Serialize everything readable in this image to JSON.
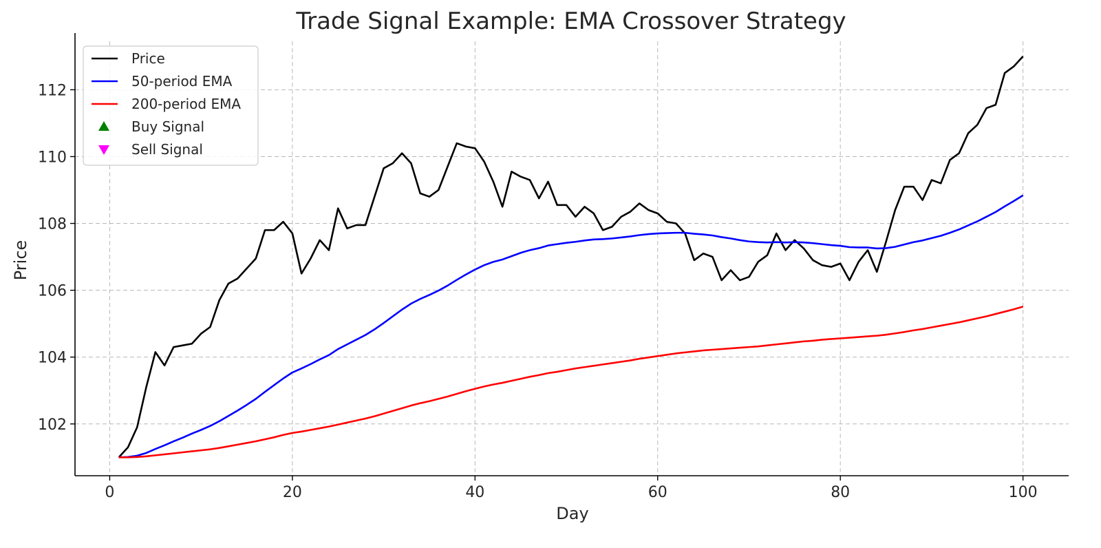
{
  "chart_data": {
    "type": "line",
    "title": "Trade Signal Example: EMA Crossover Strategy",
    "xlabel": "Day",
    "ylabel": "Price",
    "xlim": [
      -3.8,
      105
    ],
    "ylim": [
      100.45,
      113.45
    ],
    "xticks": [
      0,
      20,
      40,
      60,
      80,
      100
    ],
    "yticks": [
      102,
      104,
      106,
      108,
      110,
      112
    ],
    "grid": true,
    "legend_position": "top-left",
    "series": [
      {
        "name": "Price",
        "color": "#000000",
        "x": [
          1,
          2,
          3,
          4,
          5,
          6,
          7,
          8,
          9,
          10,
          11,
          12,
          13,
          14,
          15,
          16,
          17,
          18,
          19,
          20,
          21,
          22,
          23,
          24,
          25,
          26,
          27,
          28,
          29,
          30,
          31,
          32,
          33,
          34,
          35,
          36,
          37,
          38,
          39,
          40,
          41,
          42,
          43,
          44,
          45,
          46,
          47,
          48,
          49,
          50,
          51,
          52,
          53,
          54,
          55,
          56,
          57,
          58,
          59,
          60,
          61,
          62,
          63,
          64,
          65,
          66,
          67,
          68,
          69,
          70,
          71,
          72,
          73,
          74,
          75,
          76,
          77,
          78,
          79,
          80,
          81,
          82,
          83,
          84,
          85,
          86,
          87,
          88,
          89,
          90,
          91,
          92,
          93,
          94,
          95,
          96,
          97,
          98,
          99,
          100
        ],
        "y": [
          101.0,
          101.3,
          101.9,
          103.1,
          104.15,
          103.75,
          104.3,
          104.35,
          104.4,
          104.7,
          104.9,
          105.7,
          106.2,
          106.35,
          106.65,
          106.95,
          107.8,
          107.8,
          108.05,
          107.7,
          106.5,
          106.95,
          107.5,
          107.2,
          108.45,
          107.85,
          107.95,
          107.95,
          108.8,
          109.65,
          109.8,
          110.1,
          109.8,
          108.9,
          108.8,
          109.0,
          109.7,
          110.4,
          110.3,
          110.25,
          109.85,
          109.25,
          108.5,
          109.55,
          109.4,
          109.3,
          108.75,
          109.25,
          108.55,
          108.55,
          108.2,
          108.5,
          108.3,
          107.8,
          107.9,
          108.2,
          108.35,
          108.6,
          108.4,
          108.3,
          108.05,
          108.0,
          107.7,
          106.9,
          107.1,
          107.0,
          106.3,
          106.6,
          106.3,
          106.4,
          106.85,
          107.05,
          107.7,
          107.2,
          107.5,
          107.25,
          106.9,
          106.75,
          106.7,
          106.8,
          106.3,
          106.85,
          107.2,
          106.55,
          107.45,
          108.4,
          109.1,
          109.1,
          108.7,
          109.3,
          109.2,
          109.9,
          110.1,
          110.7,
          110.95,
          111.45,
          111.55,
          112.5,
          112.7,
          113.0
        ]
      },
      {
        "name": "50-period EMA",
        "color": "#0000ff",
        "x": [
          1,
          2,
          3,
          4,
          5,
          6,
          7,
          8,
          9,
          10,
          11,
          12,
          13,
          14,
          15,
          16,
          17,
          18,
          19,
          20,
          21,
          22,
          23,
          24,
          25,
          26,
          27,
          28,
          29,
          30,
          31,
          32,
          33,
          34,
          35,
          36,
          37,
          38,
          39,
          40,
          41,
          42,
          43,
          44,
          45,
          46,
          47,
          48,
          49,
          50,
          51,
          52,
          53,
          54,
          55,
          56,
          57,
          58,
          59,
          60,
          61,
          62,
          63,
          64,
          65,
          66,
          67,
          68,
          69,
          70,
          71,
          72,
          73,
          74,
          75,
          76,
          77,
          78,
          79,
          80,
          81,
          82,
          83,
          84,
          85,
          86,
          87,
          88,
          89,
          90,
          91,
          92,
          93,
          94,
          95,
          96,
          97,
          98,
          99,
          100
        ],
        "y": [
          101.0,
          101.01,
          101.05,
          101.13,
          101.25,
          101.36,
          101.48,
          101.59,
          101.71,
          101.82,
          101.94,
          102.08,
          102.24,
          102.4,
          102.57,
          102.75,
          102.96,
          103.16,
          103.36,
          103.54,
          103.66,
          103.79,
          103.93,
          104.06,
          104.24,
          104.38,
          104.52,
          104.66,
          104.83,
          105.02,
          105.22,
          105.42,
          105.6,
          105.74,
          105.86,
          105.99,
          106.14,
          106.31,
          106.47,
          106.62,
          106.75,
          106.85,
          106.92,
          107.02,
          107.12,
          107.2,
          107.26,
          107.34,
          107.38,
          107.42,
          107.45,
          107.49,
          107.52,
          107.53,
          107.55,
          107.58,
          107.61,
          107.65,
          107.68,
          107.7,
          107.71,
          107.72,
          107.72,
          107.69,
          107.67,
          107.64,
          107.59,
          107.55,
          107.5,
          107.46,
          107.44,
          107.43,
          107.44,
          107.43,
          107.44,
          107.43,
          107.41,
          107.38,
          107.35,
          107.33,
          107.29,
          107.28,
          107.28,
          107.25,
          107.26,
          107.3,
          107.37,
          107.44,
          107.49,
          107.56,
          107.63,
          107.72,
          107.82,
          107.94,
          108.06,
          108.2,
          108.34,
          108.51,
          108.67,
          108.84
        ]
      },
      {
        "name": "200-period EMA",
        "color": "#ff0000",
        "x": [
          1,
          2,
          3,
          4,
          5,
          6,
          7,
          8,
          9,
          10,
          11,
          12,
          13,
          14,
          15,
          16,
          17,
          18,
          19,
          20,
          21,
          22,
          23,
          24,
          25,
          26,
          27,
          28,
          29,
          30,
          31,
          32,
          33,
          34,
          35,
          36,
          37,
          38,
          39,
          40,
          41,
          42,
          43,
          44,
          45,
          46,
          47,
          48,
          49,
          50,
          51,
          52,
          53,
          54,
          55,
          56,
          57,
          58,
          59,
          60,
          61,
          62,
          63,
          64,
          65,
          66,
          67,
          68,
          69,
          70,
          71,
          72,
          73,
          74,
          75,
          76,
          77,
          78,
          79,
          80,
          81,
          82,
          83,
          84,
          85,
          86,
          87,
          88,
          89,
          90,
          91,
          92,
          93,
          94,
          95,
          96,
          97,
          98,
          99,
          100
        ],
        "y": [
          101.0,
          101.0,
          101.01,
          101.03,
          101.06,
          101.09,
          101.12,
          101.15,
          101.18,
          101.21,
          101.24,
          101.28,
          101.33,
          101.38,
          101.43,
          101.48,
          101.54,
          101.6,
          101.67,
          101.73,
          101.77,
          101.82,
          101.87,
          101.92,
          101.98,
          102.04,
          102.1,
          102.16,
          102.23,
          102.31,
          102.39,
          102.47,
          102.55,
          102.62,
          102.68,
          102.75,
          102.82,
          102.9,
          102.98,
          103.05,
          103.12,
          103.18,
          103.23,
          103.29,
          103.35,
          103.41,
          103.46,
          103.52,
          103.56,
          103.61,
          103.66,
          103.7,
          103.74,
          103.78,
          103.82,
          103.86,
          103.9,
          103.95,
          103.99,
          104.03,
          104.07,
          104.11,
          104.14,
          104.17,
          104.2,
          104.22,
          104.24,
          104.26,
          104.28,
          104.3,
          104.32,
          104.35,
          104.38,
          104.41,
          104.44,
          104.47,
          104.49,
          104.52,
          104.54,
          104.56,
          104.58,
          104.6,
          104.62,
          104.64,
          104.67,
          104.71,
          104.75,
          104.8,
          104.84,
          104.89,
          104.94,
          104.99,
          105.04,
          105.1,
          105.16,
          105.22,
          105.29,
          105.36,
          105.43,
          105.51
        ]
      }
    ],
    "signals": [
      {
        "name": "Buy Signal",
        "color": "#008000",
        "marker": "triangle-up",
        "points": []
      },
      {
        "name": "Sell Signal",
        "color": "#ff00ff",
        "marker": "triangle-down",
        "points": []
      }
    ]
  }
}
